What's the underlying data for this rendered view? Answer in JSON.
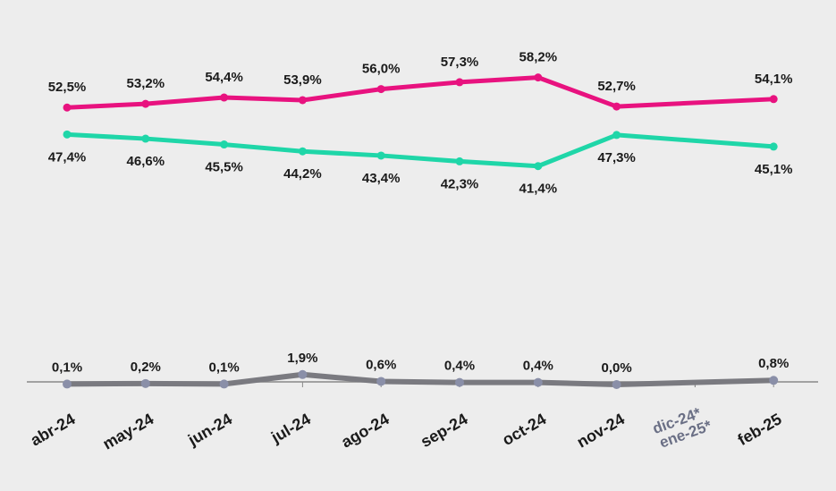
{
  "chart_data": {
    "type": "line",
    "categories": [
      "abr-24",
      "may-24",
      "jun-24",
      "jul-24",
      "ago-24",
      "sep-24",
      "oct-24",
      "nov-24",
      "feb-25"
    ],
    "missing_categories": [
      "dic-24*",
      "ene-25*"
    ],
    "series": [
      {
        "color": "#e8127f",
        "values": [
          52.5,
          53.2,
          54.4,
          53.9,
          56.0,
          57.3,
          58.2,
          52.7,
          54.1
        ],
        "value_labels": [
          "52,5%",
          "53,2%",
          "54,4%",
          "53,9%",
          "56,0%",
          "57,3%",
          "58,2%",
          "52,7%",
          "54,1%"
        ]
      },
      {
        "color": "#1fd6a8",
        "values": [
          47.4,
          46.6,
          45.5,
          44.2,
          43.4,
          42.3,
          41.4,
          47.3,
          45.1
        ],
        "value_labels": [
          "47,4%",
          "46,6%",
          "45,5%",
          "44,2%",
          "43,4%",
          "42,3%",
          "41,4%",
          "47,3%",
          "45,1%"
        ]
      },
      {
        "color": "#7a7a80",
        "values": [
          0.1,
          0.2,
          0.1,
          1.9,
          0.6,
          0.4,
          0.4,
          0.0,
          0.8
        ],
        "value_labels": [
          "0,1%",
          "0,2%",
          "0,1%",
          "1,9%",
          "0,6%",
          "0,4%",
          "0,4%",
          "0,0%",
          "0,8%"
        ]
      }
    ]
  }
}
